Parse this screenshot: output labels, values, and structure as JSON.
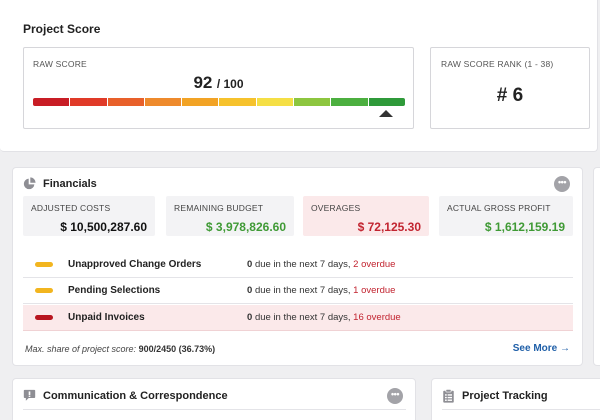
{
  "project_score": {
    "title": "Project Score",
    "raw_score": {
      "label": "RAW SCORE",
      "value": "92",
      "max": "/ 100",
      "score_fraction": 0.92,
      "gauge_colors": [
        "#c81d25",
        "#e03a28",
        "#e8602a",
        "#ee8a2c",
        "#f2a325",
        "#f6c22c",
        "#f5df45",
        "#8dc63f",
        "#4caf3f",
        "#2f9a3a"
      ]
    },
    "rank": {
      "label": "RAW SCORE RANK (1 - 38)",
      "value": "# 6"
    }
  },
  "financials": {
    "title": "Financials",
    "icon": "pie-chart-icon",
    "menu_icon": "more-dots-icon",
    "menu_label": "•••",
    "stats": [
      {
        "label": "ADJUSTED COSTS",
        "value": "$ 10,500,287.60",
        "color": "#111111"
      },
      {
        "label": "REMAINING BUDGET",
        "value": "$ 3,978,826.60",
        "color": "#3f9a35"
      },
      {
        "label": "OVERAGES",
        "value": "$ 72,125.30",
        "color": "#c22430"
      },
      {
        "label": "ACTUAL GROSS PROFIT",
        "value": "$ 1,612,159.19",
        "color": "#3f9a35"
      }
    ],
    "rows": [
      {
        "label": "Unapproved Change Orders",
        "pill_color": "#f2b51f",
        "due_count": "0",
        "due_text": "due in the next 7 days,",
        "overdue": "2 overdue"
      },
      {
        "label": "Pending Selections",
        "pill_color": "#f2b51f",
        "due_count": "0",
        "due_text": "due in the next 7 days,",
        "overdue": "1 overdue"
      },
      {
        "label": "Unpaid Invoices",
        "pill_color": "#b8151f",
        "due_count": "0",
        "due_text": "due in the next 7 days,",
        "overdue": "16 overdue"
      }
    ],
    "footer_label": "Max. share of project score:",
    "footer_value": "900/2450 (36.73%)",
    "see_more": "See More →"
  },
  "communication": {
    "title": "Communication & Correspondence",
    "icon": "chat-icon",
    "menu_label": "•••"
  },
  "tracking": {
    "title": "Project Tracking",
    "icon": "checklist-icon"
  }
}
